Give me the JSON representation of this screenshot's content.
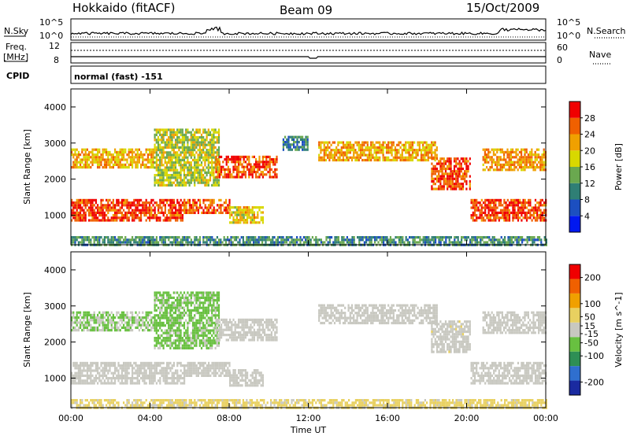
{
  "header": {
    "station": "Hokkaido (fitACF)",
    "beam": "Beam 09",
    "date": "15/Oct/2009"
  },
  "top_panels": {
    "nsky_label": "N.Sky",
    "nsky_ticks": [
      "10^5",
      "10^0"
    ],
    "nsearch_label": "N.Search",
    "nsearch_ticks": [
      "10^5",
      "10^0"
    ],
    "freq_label": "Freq.",
    "freq_unit": "[MHz]",
    "freq_ticks": [
      "12",
      "8"
    ],
    "nave_label": "Nave",
    "nave_ticks": [
      "60",
      "0"
    ],
    "cpid_label": "CPID",
    "cpid_text": "normal (fast) -151"
  },
  "chart_data": [
    {
      "type": "heatmap",
      "name": "power",
      "ylabel": "Slant Range [km]",
      "xlabel": "",
      "x_ticks": [
        "00:00",
        "04:00",
        "08:00",
        "12:00",
        "16:00",
        "20:00",
        "00:00"
      ],
      "x_range_hours": [
        0,
        24
      ],
      "y_ticks": [
        1000,
        2000,
        3000,
        4000
      ],
      "ylim": [
        180,
        4500
      ],
      "colorbar": {
        "label": "Power [dB]",
        "ticks": [
          4,
          8,
          12,
          16,
          20,
          24,
          28
        ],
        "range": [
          0,
          32
        ],
        "colors": [
          "#0018f0",
          "#1c4fc0",
          "#2f7f75",
          "#6aa84f",
          "#d8d800",
          "#f0a000",
          "#f06000",
          "#f00000"
        ]
      },
      "regions": [
        {
          "t": [
            0,
            5.7
          ],
          "r": [
            880,
            1450
          ],
          "v": 28
        },
        {
          "t": [
            5.7,
            8
          ],
          "r": [
            1100,
            1450
          ],
          "v": 26
        },
        {
          "t": [
            8,
            9.7
          ],
          "r": [
            800,
            1250
          ],
          "v": 20
        },
        {
          "t": [
            0,
            4.2
          ],
          "r": [
            2300,
            2850
          ],
          "v": 21
        },
        {
          "t": [
            4.2,
            7.5
          ],
          "r": [
            1800,
            3400
          ],
          "v": 17
        },
        {
          "t": [
            7.3,
            10.4
          ],
          "r": [
            2050,
            2650
          ],
          "v": 27
        },
        {
          "t": [
            10.7,
            12
          ],
          "r": [
            2800,
            3200
          ],
          "v": 10
        },
        {
          "t": [
            12.5,
            18.5
          ],
          "r": [
            2500,
            3050
          ],
          "v": 22
        },
        {
          "t": [
            18.2,
            20.2
          ],
          "r": [
            1700,
            2600
          ],
          "v": 27
        },
        {
          "t": [
            20.2,
            24
          ],
          "r": [
            880,
            1450
          ],
          "v": 28
        },
        {
          "t": [
            20.8,
            24
          ],
          "r": [
            2250,
            2850
          ],
          "v": 23
        },
        {
          "t": [
            0,
            24
          ],
          "r": [
            180,
            420
          ],
          "v": 11
        }
      ]
    },
    {
      "type": "heatmap",
      "name": "velocity",
      "ylabel": "Slant Range [km]",
      "xlabel": "Time UT",
      "x_ticks": [
        "00:00",
        "04:00",
        "08:00",
        "12:00",
        "16:00",
        "20:00",
        "00:00"
      ],
      "x_range_hours": [
        0,
        24
      ],
      "y_ticks": [
        1000,
        2000,
        3000,
        4000
      ],
      "ylim": [
        180,
        4500
      ],
      "colorbar": {
        "label": "Velocity [m s^-1]",
        "ticks": [
          200,
          100,
          50,
          15,
          -15,
          -50,
          -100,
          -200
        ],
        "range": [
          -250,
          250
        ],
        "colors": [
          "#1a2aa0",
          "#2f6fcf",
          "#2e8f55",
          "#68c040",
          "#c8c8c0",
          "#e8d060",
          "#f0a000",
          "#f06000",
          "#f00000"
        ]
      },
      "regions": [
        {
          "t": [
            0,
            5.7
          ],
          "r": [
            880,
            1450
          ],
          "v": 0
        },
        {
          "t": [
            5.7,
            8
          ],
          "r": [
            1100,
            1450
          ],
          "v": 0
        },
        {
          "t": [
            8,
            9.7
          ],
          "r": [
            800,
            1250
          ],
          "v": 0
        },
        {
          "t": [
            0,
            4.2
          ],
          "r": [
            2300,
            2850
          ],
          "v": -30
        },
        {
          "t": [
            4.2,
            7.5
          ],
          "r": [
            1800,
            3400
          ],
          "v": -40
        },
        {
          "t": [
            7.3,
            10.4
          ],
          "r": [
            2050,
            2650
          ],
          "v": 0
        },
        {
          "t": [
            12.5,
            18.5
          ],
          "r": [
            2500,
            3050
          ],
          "v": 0
        },
        {
          "t": [
            18.2,
            20.2
          ],
          "r": [
            1700,
            2600
          ],
          "v": 10
        },
        {
          "t": [
            20.2,
            24
          ],
          "r": [
            880,
            1450
          ],
          "v": 0
        },
        {
          "t": [
            20.8,
            24
          ],
          "r": [
            2250,
            2850
          ],
          "v": 0
        },
        {
          "t": [
            0,
            24
          ],
          "r": [
            180,
            420
          ],
          "v": 40
        }
      ]
    }
  ]
}
